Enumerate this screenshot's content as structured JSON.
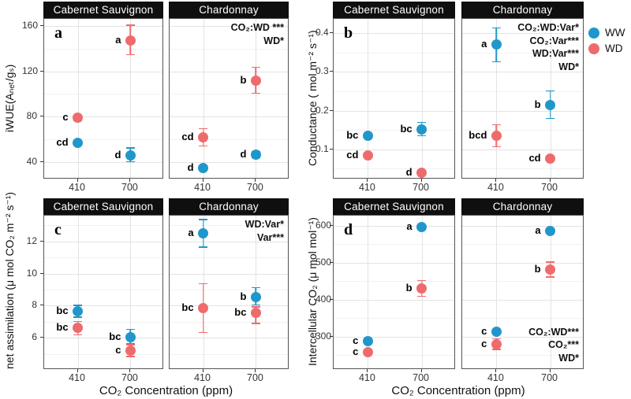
{
  "figure": {
    "x_axis_title": "CO₂ Concentration (ppm)",
    "x_categories": [
      "410",
      "700"
    ],
    "facet_titles": [
      "Cabernet Sauvignon",
      "Chardonnay"
    ],
    "colors": {
      "WW": "#2097cb",
      "WD": "#ee6b6d",
      "strip_bg": "#0f0f0f",
      "strip_text": "#ffffff"
    },
    "legend": {
      "items": [
        {
          "label": "WW",
          "color": "#2097cb"
        },
        {
          "label": "WD",
          "color": "#ee6b6d"
        }
      ]
    }
  },
  "chart_data": [
    {
      "type": "scatter",
      "panel_letter": "a",
      "ylabel": "iWUE(Aₙₑₜ/gₛ)",
      "ylim": [
        25,
        166
      ],
      "yticks": [
        {
          "v": 40,
          "label": "40"
        },
        {
          "v": 80,
          "label": "80"
        },
        {
          "v": 120,
          "label": "120"
        },
        {
          "v": 160,
          "label": "160"
        }
      ],
      "facets": [
        {
          "title": "Cabernet Sauvignon",
          "annotations": [],
          "annotation_anchor": "top-right",
          "points": [
            {
              "x": "410",
              "series": "WW",
              "y": 57,
              "lo": 55,
              "hi": 59,
              "label": "cd"
            },
            {
              "x": "410",
              "series": "WD",
              "y": 79,
              "lo": 76,
              "hi": 82,
              "label": "c"
            },
            {
              "x": "700",
              "series": "WW",
              "y": 46,
              "lo": 40,
              "hi": 53,
              "label": "d"
            },
            {
              "x": "700",
              "series": "WD",
              "y": 147,
              "lo": 134,
              "hi": 161,
              "label": "a"
            }
          ]
        },
        {
          "title": "Chardonnay",
          "annotations": [
            "CO₂:WD ***",
            "WD*"
          ],
          "annotation_anchor": "top-right",
          "points": [
            {
              "x": "410",
              "series": "WW",
              "y": 35,
              "lo": 33,
              "hi": 37,
              "label": "d"
            },
            {
              "x": "410",
              "series": "WD",
              "y": 62,
              "lo": 54,
              "hi": 70,
              "label": "cd"
            },
            {
              "x": "700",
              "series": "WW",
              "y": 47,
              "lo": 44,
              "hi": 50,
              "label": "d"
            },
            {
              "x": "700",
              "series": "WD",
              "y": 112,
              "lo": 100,
              "hi": 124,
              "label": "b"
            }
          ]
        }
      ]
    },
    {
      "type": "scatter",
      "panel_letter": "b",
      "ylabel": "Conductance ( mol m⁻² s⁻¹)",
      "ylim": [
        0.022,
        0.437
      ],
      "yticks": [
        {
          "v": 0.1,
          "label": "0.1"
        },
        {
          "v": 0.2,
          "label": "0.2"
        },
        {
          "v": 0.3,
          "label": "0.3"
        },
        {
          "v": 0.4,
          "label": "0.4"
        }
      ],
      "facets": [
        {
          "title": "Cabernet Sauvignon",
          "annotations": [],
          "annotation_anchor": "top-right",
          "points": [
            {
              "x": "410",
              "series": "WW",
              "y": 0.135,
              "lo": 0.128,
              "hi": 0.142,
              "label": "bc"
            },
            {
              "x": "410",
              "series": "WD",
              "y": 0.085,
              "lo": 0.08,
              "hi": 0.09,
              "label": "cd"
            },
            {
              "x": "700",
              "series": "WW",
              "y": 0.152,
              "lo": 0.133,
              "hi": 0.171,
              "label": "bc"
            },
            {
              "x": "700",
              "series": "WD",
              "y": 0.04,
              "lo": 0.036,
              "hi": 0.044,
              "label": "d"
            }
          ]
        },
        {
          "title": "Chardonnay",
          "annotations": [
            "CO₂:WD:Var*",
            "CO₂:Var***",
            "WD:Var***",
            "WD*"
          ],
          "annotation_anchor": "top-right",
          "points": [
            {
              "x": "410",
              "series": "WW",
              "y": 0.37,
              "lo": 0.325,
              "hi": 0.415,
              "label": "a"
            },
            {
              "x": "410",
              "series": "WD",
              "y": 0.135,
              "lo": 0.105,
              "hi": 0.165,
              "label": "bcd"
            },
            {
              "x": "700",
              "series": "WW",
              "y": 0.215,
              "lo": 0.178,
              "hi": 0.252,
              "label": "b"
            },
            {
              "x": "700",
              "series": "WD",
              "y": 0.075,
              "lo": 0.068,
              "hi": 0.082,
              "label": "cd"
            }
          ]
        }
      ]
    },
    {
      "type": "scatter",
      "panel_letter": "c",
      "ylabel": "net assimilation (μ mol CO₂ m⁻² s⁻¹)",
      "ylim": [
        4.0,
        13.6
      ],
      "yticks": [
        {
          "v": 6,
          "label": "6"
        },
        {
          "v": 8,
          "label": "8"
        },
        {
          "v": 10,
          "label": "10"
        },
        {
          "v": 12,
          "label": "12"
        }
      ],
      "facets": [
        {
          "title": "Cabernet Sauvignon",
          "annotations": [],
          "annotation_anchor": "top-right",
          "points": [
            {
              "x": "410",
              "series": "WW",
              "y": 7.65,
              "lo": 7.25,
              "hi": 8.05,
              "label": "bc"
            },
            {
              "x": "410",
              "series": "WD",
              "y": 6.6,
              "lo": 6.15,
              "hi": 7.05,
              "label": "bc"
            },
            {
              "x": "700",
              "series": "WW",
              "y": 6.05,
              "lo": 5.6,
              "hi": 6.55,
              "label": "bc"
            },
            {
              "x": "700",
              "series": "WD",
              "y": 5.2,
              "lo": 4.8,
              "hi": 5.6,
              "label": "c"
            }
          ]
        },
        {
          "title": "Chardonnay",
          "annotations": [
            "WD:Var*",
            "Var***"
          ],
          "annotation_anchor": "top-right",
          "points": [
            {
              "x": "410",
              "series": "WW",
              "y": 12.5,
              "lo": 11.6,
              "hi": 13.4,
              "label": "a"
            },
            {
              "x": "410",
              "series": "WD",
              "y": 7.85,
              "lo": 6.3,
              "hi": 9.4,
              "label": "bc"
            },
            {
              "x": "700",
              "series": "WW",
              "y": 8.55,
              "lo": 8.0,
              "hi": 9.15,
              "label": "b"
            },
            {
              "x": "700",
              "series": "WD",
              "y": 7.55,
              "lo": 6.85,
              "hi": 7.95,
              "label": "bc"
            }
          ]
        }
      ]
    },
    {
      "type": "scatter",
      "panel_letter": "d",
      "ylabel": "Intercellular CO₂ (μ mol mol⁻¹)",
      "ylim": [
        210,
        627
      ],
      "yticks": [
        {
          "v": 300,
          "label": "300"
        },
        {
          "v": 400,
          "label": "400"
        },
        {
          "v": 500,
          "label": "500"
        },
        {
          "v": 600,
          "label": "600"
        }
      ],
      "facets": [
        {
          "title": "Cabernet Sauvignon",
          "annotations": [],
          "annotation_anchor": "top-right",
          "points": [
            {
              "x": "410",
              "series": "WW",
              "y": 288,
              "lo": 283,
              "hi": 293,
              "label": "c"
            },
            {
              "x": "410",
              "series": "WD",
              "y": 257,
              "lo": 251,
              "hi": 263,
              "label": "c"
            },
            {
              "x": "700",
              "series": "WW",
              "y": 597,
              "lo": 591,
              "hi": 603,
              "label": "a"
            },
            {
              "x": "700",
              "series": "WD",
              "y": 430,
              "lo": 407,
              "hi": 453,
              "label": "b"
            }
          ]
        },
        {
          "title": "Chardonnay",
          "annotations": [
            "CO₂:WD***",
            "CO₂***",
            "WD*"
          ],
          "annotation_anchor": "bottom-right",
          "points": [
            {
              "x": "410",
              "series": "WW",
              "y": 313,
              "lo": 308,
              "hi": 318,
              "label": "c"
            },
            {
              "x": "410",
              "series": "WD",
              "y": 280,
              "lo": 264,
              "hi": 296,
              "label": "c"
            },
            {
              "x": "700",
              "series": "WW",
              "y": 585,
              "lo": 578,
              "hi": 592,
              "label": "a"
            },
            {
              "x": "700",
              "series": "WD",
              "y": 481,
              "lo": 459,
              "hi": 503,
              "label": "b"
            }
          ]
        }
      ]
    }
  ]
}
